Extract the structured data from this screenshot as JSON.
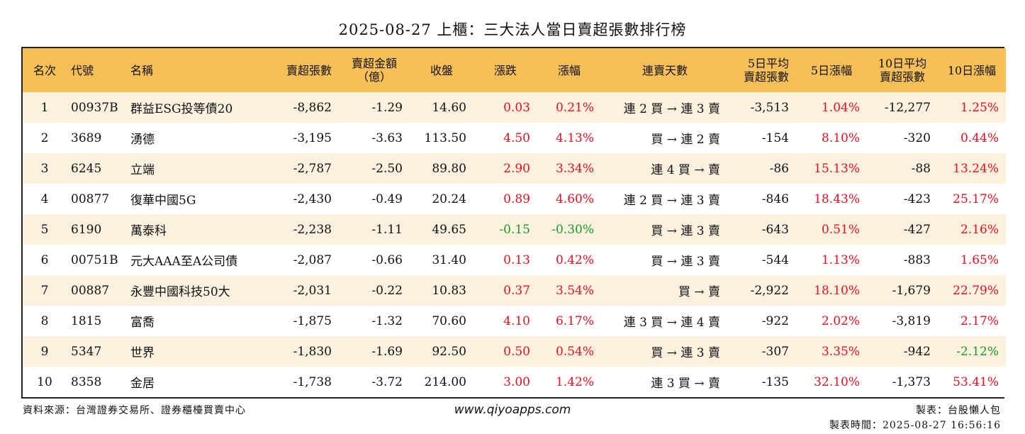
{
  "title": "2025-08-27 上櫃：三大法人當日賣超張數排行榜",
  "headers": [
    "名次",
    "代號",
    "名稱",
    "賣超張數",
    "賣超金額\n（億）",
    "收盤",
    "漲跌",
    "漲幅",
    "連賣天數",
    "5日平均\n賣超張數",
    "5日漲幅",
    "10日平均\n賣超張數",
    "10日漲幅"
  ],
  "rows": [
    {
      "rank": "1",
      "code": "00937B",
      "name": "群益ESG投等債20",
      "net_sell_lots": "-8,862",
      "net_sell_amount": "-1.29",
      "close": "14.60",
      "change": "0.03",
      "change_pct": "0.21%",
      "streak": "連 2 買 → 連 3 賣",
      "avg5": "-3,513",
      "pct5": "1.04%",
      "avg10": "-12,277",
      "pct10": "1.25%"
    },
    {
      "rank": "2",
      "code": "3689",
      "name": "湧德",
      "net_sell_lots": "-3,195",
      "net_sell_amount": "-3.63",
      "close": "113.50",
      "change": "4.50",
      "change_pct": "4.13%",
      "streak": "買 → 連 2 賣",
      "avg5": "-154",
      "pct5": "8.10%",
      "avg10": "-320",
      "pct10": "0.44%"
    },
    {
      "rank": "3",
      "code": "6245",
      "name": "立端",
      "net_sell_lots": "-2,787",
      "net_sell_amount": "-2.50",
      "close": "89.80",
      "change": "2.90",
      "change_pct": "3.34%",
      "streak": "連 4 買 → 賣",
      "avg5": "-86",
      "pct5": "15.13%",
      "avg10": "-88",
      "pct10": "13.24%"
    },
    {
      "rank": "4",
      "code": "00877",
      "name": "復華中國5G",
      "net_sell_lots": "-2,430",
      "net_sell_amount": "-0.49",
      "close": "20.24",
      "change": "0.89",
      "change_pct": "4.60%",
      "streak": "連 2 買 → 連 3 賣",
      "avg5": "-846",
      "pct5": "18.43%",
      "avg10": "-423",
      "pct10": "25.17%"
    },
    {
      "rank": "5",
      "code": "6190",
      "name": "萬泰科",
      "net_sell_lots": "-2,238",
      "net_sell_amount": "-1.11",
      "close": "49.65",
      "change": "-0.15",
      "change_pct": "-0.30%",
      "streak": "買 → 連 3 賣",
      "avg5": "-643",
      "pct5": "0.51%",
      "avg10": "-427",
      "pct10": "2.16%"
    },
    {
      "rank": "6",
      "code": "00751B",
      "name": "元大AAA至A公司債",
      "net_sell_lots": "-2,087",
      "net_sell_amount": "-0.66",
      "close": "31.40",
      "change": "0.13",
      "change_pct": "0.42%",
      "streak": "買 → 連 3 賣",
      "avg5": "-544",
      "pct5": "1.13%",
      "avg10": "-883",
      "pct10": "1.65%"
    },
    {
      "rank": "7",
      "code": "00887",
      "name": "永豐中國科技50大",
      "net_sell_lots": "-2,031",
      "net_sell_amount": "-0.22",
      "close": "10.83",
      "change": "0.37",
      "change_pct": "3.54%",
      "streak": "買 → 賣",
      "avg5": "-2,922",
      "pct5": "18.10%",
      "avg10": "-1,679",
      "pct10": "22.79%"
    },
    {
      "rank": "8",
      "code": "1815",
      "name": "富喬",
      "net_sell_lots": "-1,875",
      "net_sell_amount": "-1.32",
      "close": "70.60",
      "change": "4.10",
      "change_pct": "6.17%",
      "streak": "連 3 買 → 連 4 賣",
      "avg5": "-922",
      "pct5": "2.02%",
      "avg10": "-3,819",
      "pct10": "2.17%"
    },
    {
      "rank": "9",
      "code": "5347",
      "name": "世界",
      "net_sell_lots": "-1,830",
      "net_sell_amount": "-1.69",
      "close": "92.50",
      "change": "0.50",
      "change_pct": "0.54%",
      "streak": "買 → 連 3 賣",
      "avg5": "-307",
      "pct5": "3.35%",
      "avg10": "-942",
      "pct10": "-2.12%"
    },
    {
      "rank": "10",
      "code": "8358",
      "name": "金居",
      "net_sell_lots": "-1,738",
      "net_sell_amount": "-3.72",
      "close": "214.00",
      "change": "3.00",
      "change_pct": "1.42%",
      "streak": "連 3 買 → 賣",
      "avg5": "-135",
      "pct5": "32.10%",
      "avg10": "-1,373",
      "pct10": "53.41%"
    }
  ],
  "footer": {
    "source": "資料來源：台灣證券交易所、證券櫃檯買賣中心",
    "website": "www.qiyoapps.com",
    "maker": "製表：台股懶人包",
    "made_time": "製表時間：2025-08-27 16:56:16"
  },
  "colors": {
    "header_bg": "#f6bf58",
    "row_alt_bg": "#fcf1de",
    "positive": "#e8101e",
    "negative": "#1b9a2a"
  }
}
